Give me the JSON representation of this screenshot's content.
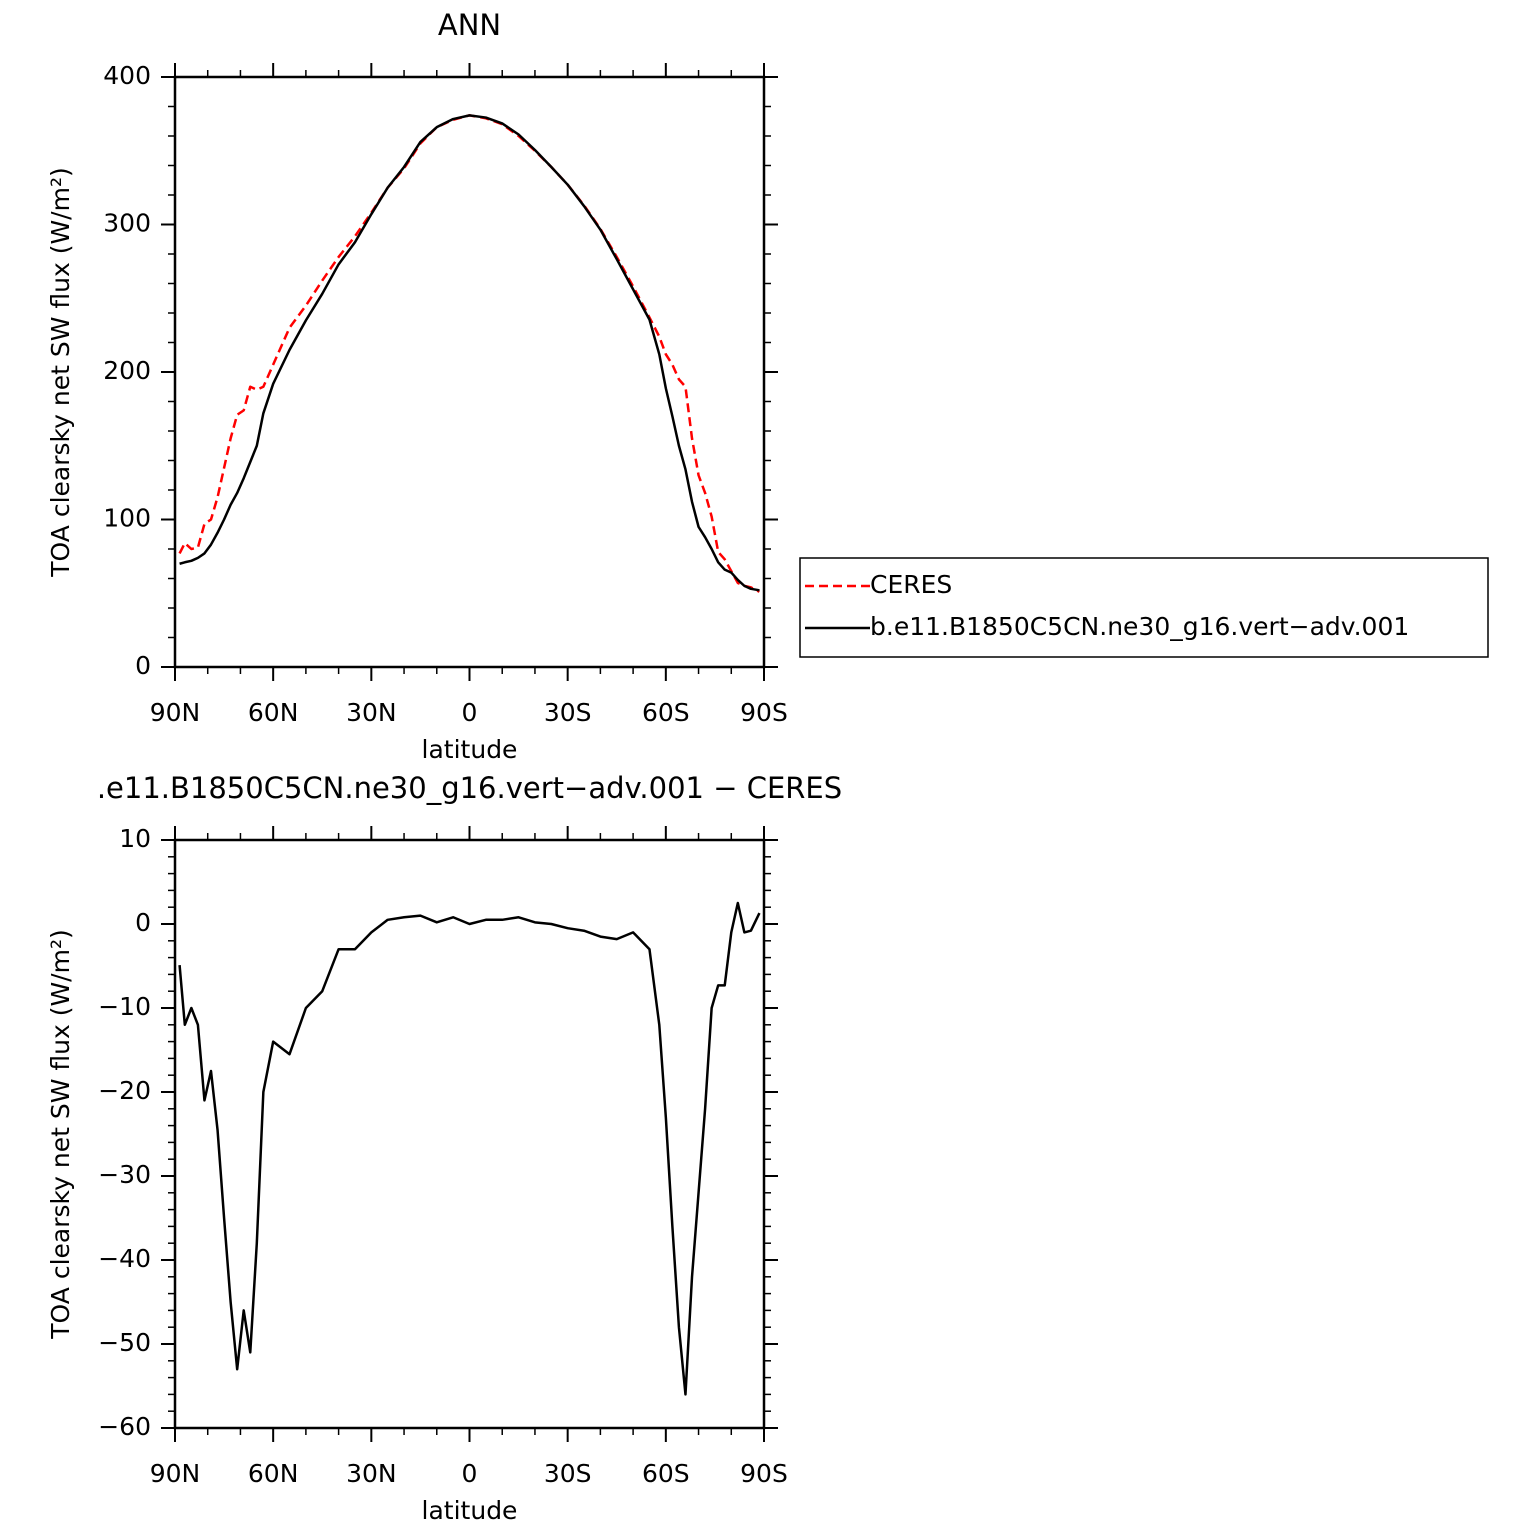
{
  "chart_data": [
    {
      "type": "line",
      "title": "ANN",
      "xlabel": "latitude",
      "ylabel": "TOA clearsky net SW flux (W/m²)",
      "x": [
        88.6,
        87,
        85,
        83,
        81,
        79,
        77,
        75,
        73,
        71,
        69,
        67,
        65,
        63,
        60,
        55,
        50,
        45,
        40,
        35,
        30,
        25,
        20,
        15,
        10,
        5,
        0,
        -5,
        -10,
        -15,
        -20,
        -25,
        -30,
        -35,
        -40,
        -45,
        -50,
        -55,
        -58,
        -60,
        -62,
        -64,
        -66,
        -68,
        -70,
        -72,
        -74,
        -76,
        -78,
        -80,
        -82,
        -84,
        -86,
        -88.6
      ],
      "series": [
        {
          "name": "CERES",
          "color": "#ff0000",
          "linestyle": "dashed",
          "values": [
            77,
            84,
            80,
            81,
            97,
            100,
            115,
            135,
            155,
            171,
            174,
            190,
            188,
            190,
            205,
            230,
            245,
            262,
            278,
            292,
            308,
            325,
            338,
            355,
            366,
            371,
            374,
            372,
            368,
            360,
            350,
            339,
            327,
            313,
            297,
            278,
            258,
            237,
            224,
            212,
            205,
            195,
            190,
            155,
            130,
            118,
            102,
            78,
            73,
            65,
            57,
            55,
            54,
            51
          ]
        },
        {
          "name": "b.e11.B1850C5CN.ne30_g16.vert−adv.001",
          "color": "#000000",
          "linestyle": "solid",
          "values": [
            70,
            71,
            72,
            74,
            77,
            83,
            91,
            100,
            110,
            118,
            128,
            139,
            150,
            172,
            192,
            215,
            235,
            253,
            273,
            288,
            307,
            325,
            339,
            356,
            366,
            371.5,
            374,
            372.5,
            368.5,
            361,
            350.5,
            339,
            327,
            312.5,
            296.5,
            276.5,
            256,
            235.5,
            212,
            189,
            170,
            150,
            134,
            112,
            95,
            88,
            80,
            71,
            66,
            64,
            59,
            55,
            53,
            52
          ]
        }
      ],
      "xlim": [
        90,
        -90
      ],
      "xticks": [
        {
          "value": 90,
          "label": "90N"
        },
        {
          "value": 60,
          "label": "60N"
        },
        {
          "value": 30,
          "label": "30N"
        },
        0,
        {
          "value": -30,
          "label": "30S"
        },
        {
          "value": -60,
          "label": "60S"
        },
        {
          "value": -90,
          "label": "90S"
        }
      ],
      "ylim": [
        0,
        400
      ],
      "yticks": [
        0,
        100,
        200,
        300,
        400
      ],
      "legend": "right"
    },
    {
      "type": "line",
      "title": ".e11.B1850C5CN.ne30_g16.vert−adv.001 − CERES",
      "xlabel": "latitude",
      "ylabel": "TOA clearsky net SW flux (W/m²)",
      "x": [
        88.6,
        87,
        85,
        83,
        81,
        79,
        77,
        75,
        73,
        71,
        69,
        67,
        65,
        63,
        60,
        55,
        50,
        45,
        40,
        35,
        30,
        25,
        20,
        15,
        10,
        5,
        0,
        -5,
        -10,
        -15,
        -20,
        -25,
        -30,
        -35,
        -40,
        -45,
        -50,
        -55,
        -58,
        -60,
        -62,
        -64,
        -66,
        -68,
        -70,
        -72,
        -74,
        -76,
        -78,
        -80,
        -82,
        -84,
        -86,
        -88.6
      ],
      "series": [
        {
          "color": "#000000",
          "linestyle": "solid",
          "values": [
            -4.9,
            -12,
            -10,
            -12,
            -21,
            -17.5,
            -24.5,
            -35,
            -45,
            -53,
            -46,
            -51,
            -38,
            -20,
            -14,
            -15.5,
            -10,
            -8,
            -3,
            -3,
            -1,
            0.5,
            0.8,
            1,
            0.2,
            0.8,
            0,
            0.5,
            0.5,
            0.8,
            0.2,
            0,
            -0.5,
            -0.8,
            -1.5,
            -1.8,
            -1,
            -3,
            -12,
            -23,
            -36,
            -48,
            -56,
            -42,
            -32,
            -22,
            -10,
            -7.3,
            -7.3,
            -1,
            2.5,
            -1,
            -0.8,
            1.3
          ]
        }
      ],
      "xlim": [
        90,
        -90
      ],
      "xticks": [
        {
          "value": 90,
          "label": "90N"
        },
        {
          "value": 60,
          "label": "60N"
        },
        {
          "value": 30,
          "label": "30N"
        },
        0,
        {
          "value": -30,
          "label": "30S"
        },
        {
          "value": -60,
          "label": "60S"
        },
        {
          "value": -90,
          "label": "90S"
        }
      ],
      "ylim": [
        -60,
        10
      ],
      "yticks": [
        {
          "value": -60,
          "label": "−60"
        },
        {
          "value": -50,
          "label": "−50"
        },
        {
          "value": -40,
          "label": "−40"
        },
        {
          "value": -30,
          "label": "−30"
        },
        {
          "value": -20,
          "label": "−20"
        },
        {
          "value": -10,
          "label": "−10"
        },
        0,
        10
      ]
    }
  ]
}
